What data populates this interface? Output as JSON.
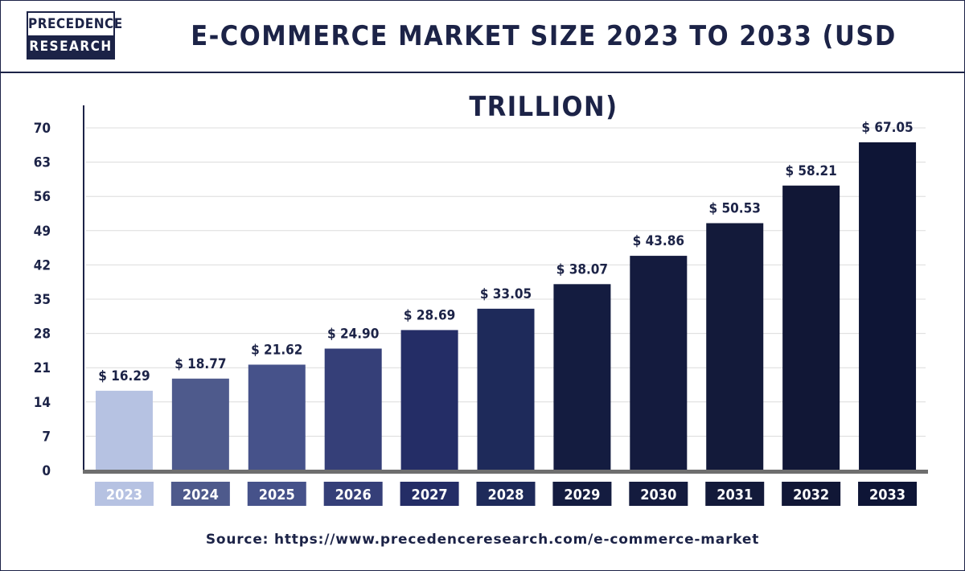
{
  "brand": {
    "line1": "PRECEDENCE",
    "line2": "RESEARCH"
  },
  "chart_data": {
    "type": "bar",
    "title": "E-COMMERCE MARKET SIZE 2023 TO 2033 (USD TRILLION)",
    "xlabel": "",
    "ylabel": "",
    "categories": [
      "2023",
      "2024",
      "2025",
      "2026",
      "2027",
      "2028",
      "2029",
      "2030",
      "2031",
      "2032",
      "2033"
    ],
    "values": [
      16.29,
      18.77,
      21.62,
      24.9,
      28.69,
      33.05,
      38.07,
      43.86,
      50.53,
      58.21,
      67.05
    ],
    "value_labels": [
      "$ 16.29",
      "$ 18.77",
      "$ 21.62",
      "$ 24.90",
      "$ 28.69",
      "$ 33.05",
      "$ 38.07",
      "$ 43.86",
      "$ 50.53",
      "$ 58.21",
      "$ 67.05"
    ],
    "bar_colors": [
      "#b6c2e2",
      "#4e5a8c",
      "#46528a",
      "#353f78",
      "#242d66",
      "#1e2a5a",
      "#141c40",
      "#141b3e",
      "#131a3a",
      "#111736",
      "#0e1536"
    ],
    "yticks": [
      0,
      7,
      14,
      21,
      28,
      35,
      42,
      49,
      56,
      63,
      70
    ],
    "ylim": [
      0,
      70
    ],
    "grid": true,
    "legend": "none"
  },
  "source": "Source: https://www.precedenceresearch.com/e-commerce-market"
}
